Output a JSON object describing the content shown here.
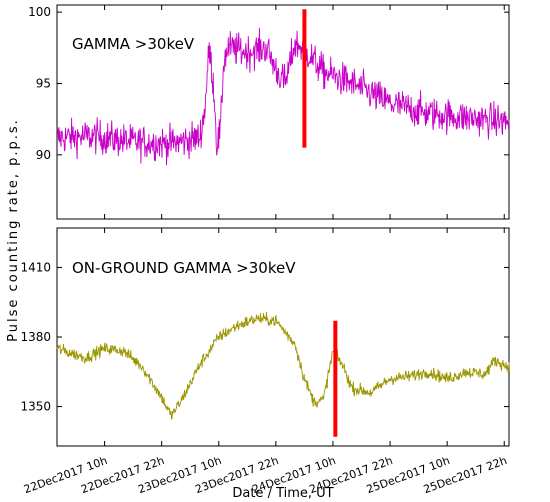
{
  "chart_data": {
    "type": "line",
    "ylabel": "Pulse  counting  rate,  p.p.s.",
    "xlabel": "Date / Time,   UT",
    "x_range_hours": [
      0,
      95
    ],
    "x_ticks": [
      {
        "label": "22Dec2017 10h",
        "hours": 10
      },
      {
        "label": "22Dec2017 22h",
        "hours": 22
      },
      {
        "label": "23Dec2017 10h",
        "hours": 34
      },
      {
        "label": "23Dec2017 22h",
        "hours": 46
      },
      {
        "label": "24Dec2017 10h",
        "hours": 58
      },
      {
        "label": "24Dec2017 22h",
        "hours": 70
      },
      {
        "label": "25Dec2017 10h",
        "hours": 82
      },
      {
        "label": "25Dec2017 22h",
        "hours": 94
      }
    ],
    "panels": [
      {
        "id": "top",
        "title": "GAMMA >30keV",
        "color": "#c800c8",
        "ylim": [
          85.5,
          100.5
        ],
        "yticks": [
          90,
          95,
          100
        ],
        "noise": 1.0,
        "series": [
          {
            "x": 0,
            "y": 91.2
          },
          {
            "x": 8,
            "y": 91.3
          },
          {
            "x": 16,
            "y": 90.9
          },
          {
            "x": 24,
            "y": 90.8
          },
          {
            "x": 30,
            "y": 91.2
          },
          {
            "x": 31,
            "y": 93.0
          },
          {
            "x": 32,
            "y": 97.5
          },
          {
            "x": 33,
            "y": 94.5
          },
          {
            "x": 33.6,
            "y": 90.6
          },
          {
            "x": 34.4,
            "y": 91.8
          },
          {
            "x": 35,
            "y": 96.5
          },
          {
            "x": 36,
            "y": 97.5
          },
          {
            "x": 40,
            "y": 97.2
          },
          {
            "x": 44,
            "y": 97.5
          },
          {
            "x": 46,
            "y": 96.0
          },
          {
            "x": 48,
            "y": 95.0
          },
          {
            "x": 50,
            "y": 97.8
          },
          {
            "x": 52,
            "y": 97.4
          },
          {
            "x": 56,
            "y": 95.8
          },
          {
            "x": 62,
            "y": 95.0
          },
          {
            "x": 70,
            "y": 93.6
          },
          {
            "x": 78,
            "y": 92.9
          },
          {
            "x": 86,
            "y": 92.6
          },
          {
            "x": 95,
            "y": 92.3
          }
        ],
        "marker": {
          "x": 52,
          "y_from": 90.5,
          "y_to": 100.2,
          "color": "#ff0000"
        }
      },
      {
        "id": "bottom",
        "title": "ON-GROUND GAMMA >30keV",
        "color": "#9b9500",
        "ylim": [
          1333,
          1427
        ],
        "yticks": [
          1350,
          1380,
          1410
        ],
        "noise": 2.2,
        "series": [
          {
            "x": 0,
            "y": 1375
          },
          {
            "x": 6,
            "y": 1371
          },
          {
            "x": 10,
            "y": 1375
          },
          {
            "x": 14,
            "y": 1374
          },
          {
            "x": 18,
            "y": 1367
          },
          {
            "x": 22,
            "y": 1354
          },
          {
            "x": 24,
            "y": 1346
          },
          {
            "x": 26,
            "y": 1352
          },
          {
            "x": 30,
            "y": 1368
          },
          {
            "x": 34,
            "y": 1380
          },
          {
            "x": 38,
            "y": 1385
          },
          {
            "x": 42,
            "y": 1388
          },
          {
            "x": 46,
            "y": 1387
          },
          {
            "x": 50,
            "y": 1377
          },
          {
            "x": 52,
            "y": 1362
          },
          {
            "x": 54,
            "y": 1352
          },
          {
            "x": 56,
            "y": 1353
          },
          {
            "x": 58,
            "y": 1374
          },
          {
            "x": 60,
            "y": 1368
          },
          {
            "x": 62,
            "y": 1358
          },
          {
            "x": 66,
            "y": 1356
          },
          {
            "x": 70,
            "y": 1362
          },
          {
            "x": 74,
            "y": 1363
          },
          {
            "x": 78,
            "y": 1365
          },
          {
            "x": 82,
            "y": 1362
          },
          {
            "x": 86,
            "y": 1365
          },
          {
            "x": 90,
            "y": 1364
          },
          {
            "x": 92,
            "y": 1370
          },
          {
            "x": 95,
            "y": 1367
          }
        ],
        "marker": {
          "x": 58.5,
          "y_from": 1337,
          "y_to": 1387,
          "color": "#ff0000"
        }
      }
    ]
  }
}
